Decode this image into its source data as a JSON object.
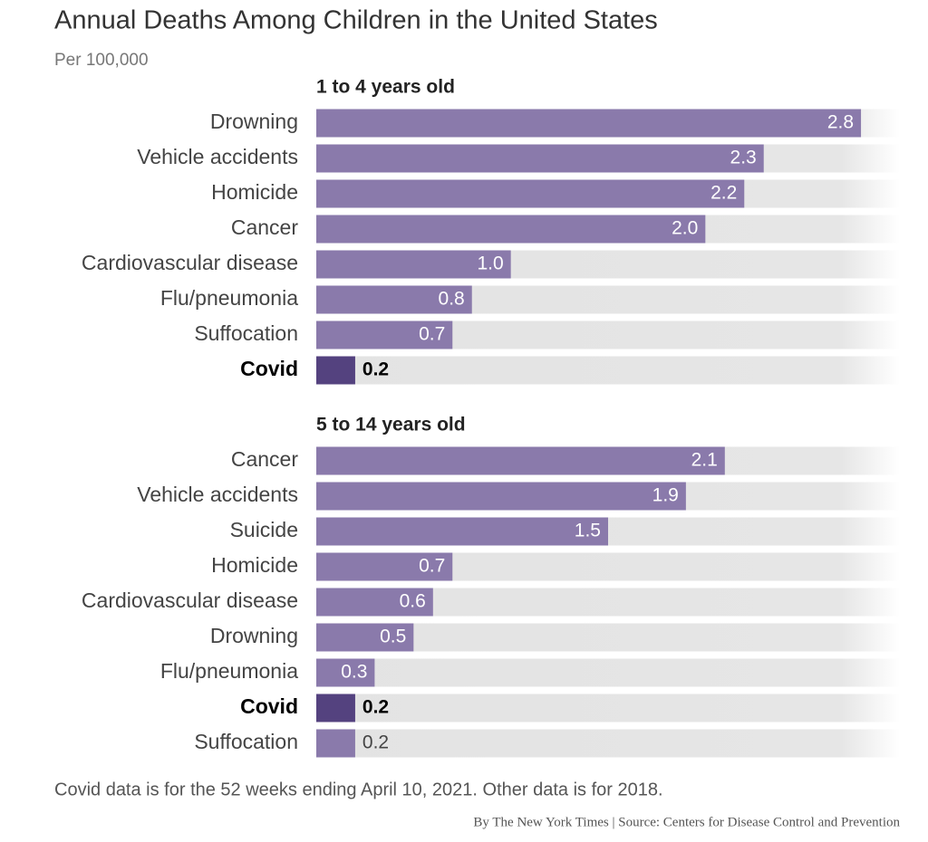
{
  "title": "Annual Deaths Among Children in the United States",
  "subtitle": "Per 100,000",
  "note": "Covid data is for the 52 weeks ending April 10, 2021. Other data is for 2018.",
  "source": "By The New York Times | Source: Centers for Disease Control and Prevention",
  "chart_data": [
    {
      "type": "bar",
      "orientation": "horizontal",
      "title": "1 to 4 years old",
      "categories": [
        "Drowning",
        "Vehicle accidents",
        "Homicide",
        "Cancer",
        "Cardiovascular disease",
        "Flu/pneumonia",
        "Suffocation",
        "Covid"
      ],
      "values": [
        2.8,
        2.3,
        2.2,
        2.0,
        1.0,
        0.8,
        0.7,
        0.2
      ],
      "value_labels": [
        "2.8",
        "2.3",
        "2.2",
        "2.0",
        "1.0",
        "0.8",
        "0.7",
        "0.2"
      ],
      "colors": [
        "#8a7aab",
        "#8a7aab",
        "#8a7aab",
        "#8a7aab",
        "#8a7aab",
        "#8a7aab",
        "#8a7aab",
        "#54427f"
      ],
      "xlim": [
        0,
        3
      ]
    },
    {
      "type": "bar",
      "orientation": "horizontal",
      "title": "5 to 14 years old",
      "categories": [
        "Cancer",
        "Vehicle accidents",
        "Suicide",
        "Homicide",
        "Cardiovascular disease",
        "Drowning",
        "Flu/pneumonia",
        "Covid",
        "Suffocation"
      ],
      "values": [
        2.1,
        1.9,
        1.5,
        0.7,
        0.6,
        0.5,
        0.3,
        0.2,
        0.2
      ],
      "value_labels": [
        "2.1",
        "1.9",
        "1.5",
        "0.7",
        "0.6",
        "0.5",
        "0.3",
        "0.2",
        "0.2"
      ],
      "colors": [
        "#8a7aab",
        "#8a7aab",
        "#8a7aab",
        "#8a7aab",
        "#8a7aab",
        "#8a7aab",
        "#8a7aab",
        "#54427f",
        "#8a7aab"
      ],
      "xlim": [
        0,
        3
      ]
    }
  ]
}
